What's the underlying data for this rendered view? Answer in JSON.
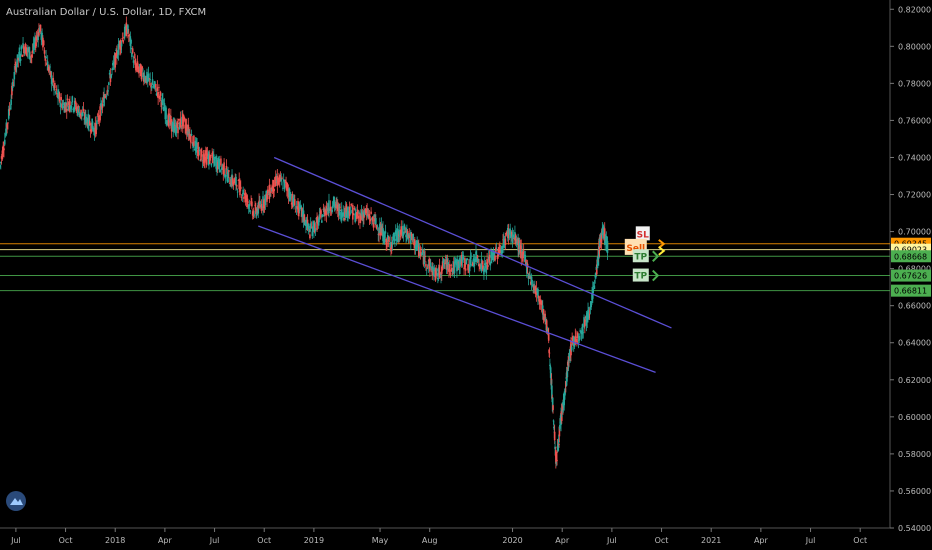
{
  "header": {
    "title": "Australian Dollar / U.S. Dollar, 1D, FXCM"
  },
  "chart_data": {
    "type": "candlestick",
    "ylim": [
      0.54,
      0.825
    ],
    "y_ticks": [
      "0.82000",
      "0.80000",
      "0.78000",
      "0.76000",
      "0.74000",
      "0.72000",
      "0.70000",
      "0.68000",
      "0.66000",
      "0.64000",
      "0.62000",
      "0.60000",
      "0.58000",
      "0.56000",
      "0.54000"
    ],
    "y_tick_values": [
      0.82,
      0.8,
      0.78,
      0.76,
      0.74,
      0.72,
      0.7,
      0.68,
      0.66,
      0.64,
      0.62,
      0.6,
      0.58,
      0.56,
      0.54
    ],
    "x_ticks": [
      "Jul",
      "Oct",
      "2018",
      "Apr",
      "Jul",
      "Oct",
      "2019",
      "May",
      "Aug",
      "2020",
      "Apr",
      "Jul",
      "Oct",
      "2021",
      "Apr",
      "Jul",
      "Oct"
    ],
    "x_tick_values": [
      2017.5,
      2017.75,
      2018.0,
      2018.25,
      2018.5,
      2018.75,
      2019.0,
      2019.333,
      2019.583,
      2020.0,
      2020.25,
      2020.5,
      2020.75,
      2021.0,
      2021.25,
      2021.5,
      2021.75
    ],
    "xlim": [
      2017.42,
      2021.9
    ],
    "price_labels": [
      {
        "value": 0.69345,
        "text": "0.69345",
        "color": "#ff9800"
      },
      {
        "value": 0.69023,
        "text": "0.69023",
        "color": "#fff59d"
      },
      {
        "value": 0.68668,
        "text": "0.68668",
        "color": "#4caf50"
      },
      {
        "value": 0.67626,
        "text": "0.67626",
        "color": "#4caf50"
      },
      {
        "value": 0.66811,
        "text": "0.66811",
        "color": "#4caf50"
      }
    ],
    "annotations": {
      "sell": "Sell",
      "tp1": "TP",
      "tp2": "TP",
      "sl": "SL"
    },
    "channel": {
      "upper": {
        "x": [
          2018.8,
          2020.8
        ],
        "y": [
          0.74,
          0.648
        ]
      },
      "lower": {
        "x": [
          2018.72,
          2020.72
        ],
        "y": [
          0.703,
          0.624
        ]
      }
    },
    "series": [
      {
        "points": [
          [
            2017.42,
            0.735
          ],
          [
            2017.46,
            0.76
          ],
          [
            2017.5,
            0.79
          ],
          [
            2017.54,
            0.8
          ],
          [
            2017.58,
            0.795
          ],
          [
            2017.62,
            0.81
          ],
          [
            2017.66,
            0.79
          ],
          [
            2017.7,
            0.775
          ],
          [
            2017.74,
            0.768
          ],
          [
            2017.78,
            0.77
          ],
          [
            2017.82,
            0.765
          ],
          [
            2017.86,
            0.76
          ],
          [
            2017.9,
            0.755
          ],
          [
            2017.94,
            0.77
          ],
          [
            2017.98,
            0.785
          ],
          [
            2018.02,
            0.8
          ],
          [
            2018.06,
            0.81
          ],
          [
            2018.1,
            0.79
          ],
          [
            2018.14,
            0.785
          ],
          [
            2018.18,
            0.78
          ],
          [
            2018.22,
            0.775
          ],
          [
            2018.26,
            0.762
          ],
          [
            2018.3,
            0.755
          ],
          [
            2018.34,
            0.76
          ],
          [
            2018.38,
            0.752
          ],
          [
            2018.42,
            0.742
          ],
          [
            2018.46,
            0.74
          ],
          [
            2018.5,
            0.738
          ],
          [
            2018.54,
            0.735
          ],
          [
            2018.58,
            0.728
          ],
          [
            2018.62,
            0.725
          ],
          [
            2018.66,
            0.718
          ],
          [
            2018.7,
            0.71
          ],
          [
            2018.74,
            0.715
          ],
          [
            2018.78,
            0.722
          ],
          [
            2018.82,
            0.728
          ],
          [
            2018.86,
            0.725
          ],
          [
            2018.9,
            0.715
          ],
          [
            2018.94,
            0.71
          ],
          [
            2018.98,
            0.7
          ],
          [
            2019.02,
            0.705
          ],
          [
            2019.06,
            0.712
          ],
          [
            2019.1,
            0.715
          ],
          [
            2019.14,
            0.71
          ],
          [
            2019.18,
            0.712
          ],
          [
            2019.22,
            0.708
          ],
          [
            2019.26,
            0.71
          ],
          [
            2019.3,
            0.706
          ],
          [
            2019.34,
            0.7
          ],
          [
            2019.38,
            0.693
          ],
          [
            2019.42,
            0.698
          ],
          [
            2019.46,
            0.7
          ],
          [
            2019.5,
            0.695
          ],
          [
            2019.54,
            0.688
          ],
          [
            2019.58,
            0.682
          ],
          [
            2019.62,
            0.676
          ],
          [
            2019.66,
            0.683
          ],
          [
            2019.7,
            0.68
          ],
          [
            2019.74,
            0.684
          ],
          [
            2019.78,
            0.682
          ],
          [
            2019.82,
            0.686
          ],
          [
            2019.86,
            0.68
          ],
          [
            2019.9,
            0.687
          ],
          [
            2019.94,
            0.69
          ],
          [
            2019.98,
            0.7
          ],
          [
            2020.02,
            0.695
          ],
          [
            2020.06,
            0.685
          ],
          [
            2020.1,
            0.672
          ],
          [
            2020.14,
            0.663
          ],
          [
            2020.18,
            0.645
          ],
          [
            2020.2,
            0.61
          ],
          [
            2020.22,
            0.575
          ],
          [
            2020.24,
            0.595
          ],
          [
            2020.26,
            0.61
          ],
          [
            2020.28,
            0.628
          ],
          [
            2020.3,
            0.64
          ],
          [
            2020.34,
            0.645
          ],
          [
            2020.38,
            0.655
          ],
          [
            2020.42,
            0.675
          ],
          [
            2020.44,
            0.695
          ],
          [
            2020.46,
            0.7
          ],
          [
            2020.48,
            0.69
          ]
        ]
      }
    ],
    "colors": {
      "up": "#26a69a",
      "down": "#ef5350",
      "channel": "#5b4fd6",
      "grid": "#1a1a1a"
    }
  }
}
